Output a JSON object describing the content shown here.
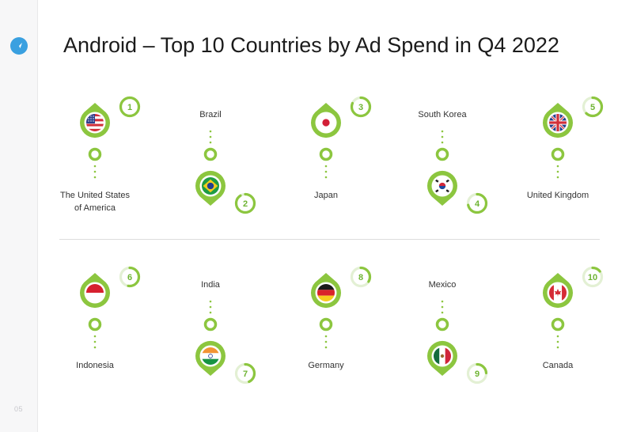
{
  "title": "Android – Top 10 Countries by Ad Spend in Q4 2022",
  "page_number": "05",
  "colors": {
    "accent": "#8cc63f",
    "accent_dark": "#6fb434",
    "ring_track": "#e3f0d4",
    "logo": "#3aa0e0"
  },
  "rows": [
    {
      "countries": [
        {
          "rank": "1",
          "name": "The United States of America",
          "name_line1": "The United States",
          "name_line2": "of America",
          "pin": "up",
          "flag": "us-flag-icon"
        },
        {
          "rank": "2",
          "name": "Brazil",
          "name_line1": "Brazil",
          "name_line2": "",
          "pin": "down",
          "flag": "brazil-flag-icon"
        },
        {
          "rank": "3",
          "name": "Japan",
          "name_line1": "Japan",
          "name_line2": "",
          "pin": "up",
          "flag": "japan-flag-icon"
        },
        {
          "rank": "4",
          "name": "South Korea",
          "name_line1": "South Korea",
          "name_line2": "",
          "pin": "down",
          "flag": "south-korea-flag-icon"
        },
        {
          "rank": "5",
          "name": "United Kingdom",
          "name_line1": "United Kingdom",
          "name_line2": "",
          "pin": "up",
          "flag": "uk-flag-icon"
        }
      ]
    },
    {
      "countries": [
        {
          "rank": "6",
          "name": "Indonesia",
          "name_line1": "Indonesia",
          "name_line2": "",
          "pin": "up",
          "flag": "indonesia-flag-icon"
        },
        {
          "rank": "7",
          "name": "India",
          "name_line1": "India",
          "name_line2": "",
          "pin": "down",
          "flag": "india-flag-icon"
        },
        {
          "rank": "8",
          "name": "Germany",
          "name_line1": "Germany",
          "name_line2": "",
          "pin": "up",
          "flag": "germany-flag-icon"
        },
        {
          "rank": "9",
          "name": "Mexico",
          "name_line1": "Mexico",
          "name_line2": "",
          "pin": "down",
          "flag": "mexico-flag-icon"
        },
        {
          "rank": "10",
          "name": "Canada",
          "name_line1": "Canada",
          "name_line2": "",
          "pin": "up",
          "flag": "canada-flag-icon"
        }
      ]
    }
  ]
}
